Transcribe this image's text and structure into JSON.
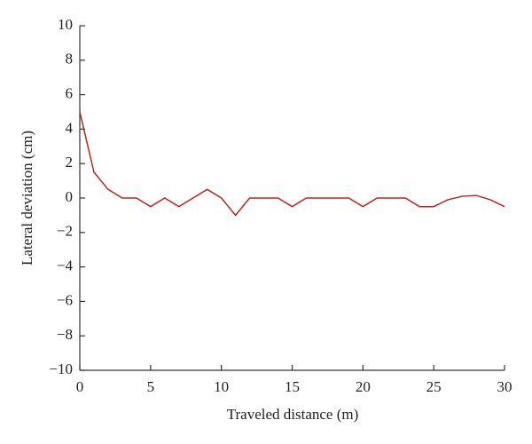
{
  "chart_data": {
    "type": "line",
    "x_label": "Traveled distance (m)",
    "y_label": "Lateral deviation (cm)",
    "x": [
      0,
      1,
      2,
      3,
      4,
      5,
      6,
      7,
      8,
      9,
      10,
      11,
      12,
      13,
      14,
      15,
      16,
      17,
      18,
      19,
      20,
      21,
      22,
      23,
      24,
      25,
      26,
      27,
      28,
      29,
      30
    ],
    "series": [
      {
        "name": "Lateral deviation",
        "color": "#b5281e",
        "values": [
          5,
          1.5,
          0.5,
          0,
          0,
          -0.5,
          0,
          -0.5,
          0,
          0.5,
          0,
          -1,
          0,
          0,
          0,
          -0.5,
          0,
          0,
          0,
          0,
          -0.5,
          0,
          0,
          0,
          -0.5,
          -0.5,
          -0.1,
          0.1,
          0.15,
          -0.1,
          -0.5
        ]
      }
    ],
    "xlim": [
      0,
      30
    ],
    "xticks": [
      0,
      5,
      10,
      15,
      20,
      25,
      30
    ],
    "ylim": [
      -10,
      10
    ],
    "yticks": [
      {
        "value": -10,
        "label": "−10"
      },
      {
        "value": -8,
        "label": "−8"
      },
      {
        "value": -6,
        "label": "−6"
      },
      {
        "value": -4,
        "label": "−4"
      },
      {
        "value": -2,
        "label": "−2"
      },
      0,
      2,
      4,
      6,
      8,
      10
    ],
    "grid": false
  }
}
